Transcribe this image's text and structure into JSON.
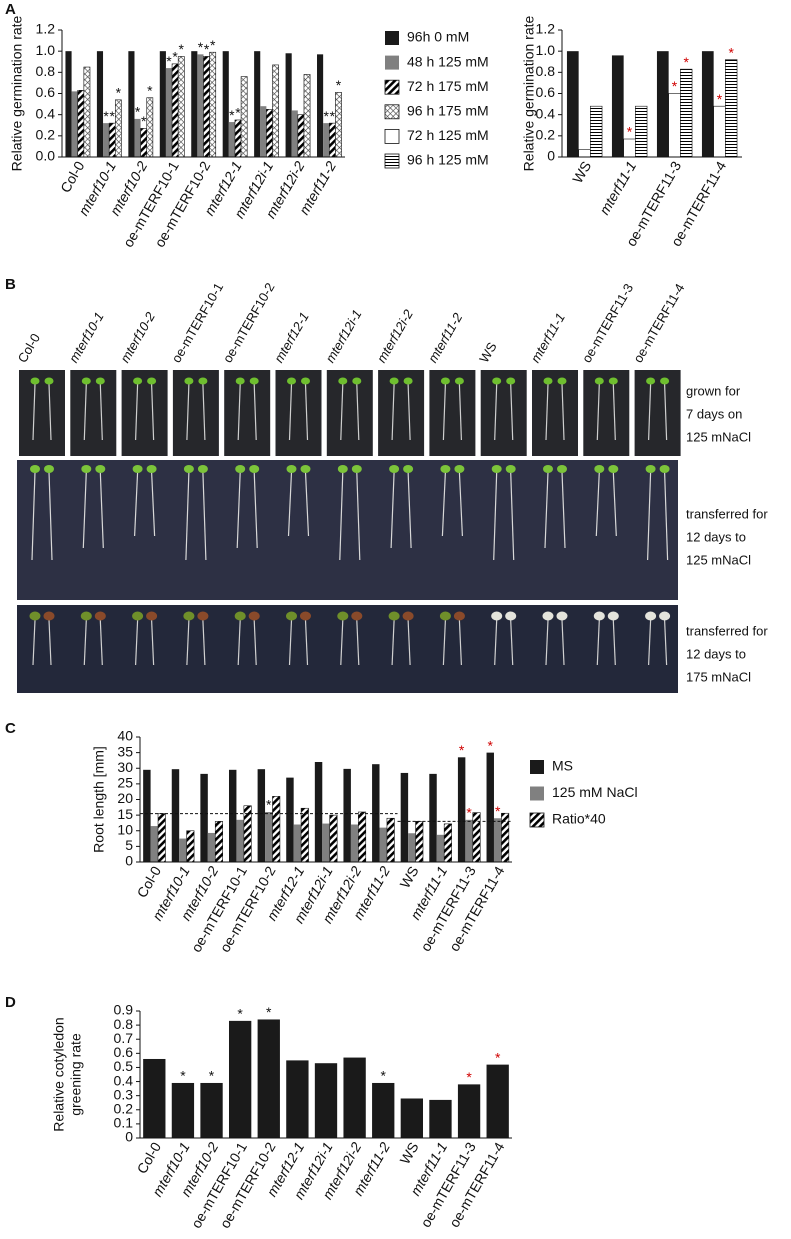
{
  "chart_data": [
    {
      "panel": "A",
      "type": "bar",
      "ylabel": "Relative germination rate",
      "categories": [
        "Col-0",
        "mterf10-1",
        "mterf10-2",
        "oe-mTERF10-1",
        "oe-mTERF10-2",
        "mterf12-1",
        "mterf12i-1",
        "mterf12i-2",
        "mterf11-2"
      ],
      "series": [
        {
          "name": "96h 0 mM",
          "color": "#1a1a1a",
          "pattern": "solid",
          "values": [
            1.0,
            1.0,
            1.0,
            1.0,
            1.0,
            1.0,
            1.0,
            0.98,
            0.97
          ]
        },
        {
          "name": "48 h 125 mM",
          "color": "#808080",
          "pattern": "solid",
          "values": [
            0.62,
            0.32,
            0.36,
            0.84,
            0.97,
            0.33,
            0.48,
            0.44,
            0.32
          ]
        },
        {
          "name": "72 h 175 mM",
          "color": "#000000",
          "pattern": "diagonal",
          "values": [
            0.63,
            0.32,
            0.27,
            0.88,
            0.95,
            0.35,
            0.45,
            0.4,
            0.32
          ]
        },
        {
          "name": "96 h 175 mM",
          "color": "#000000",
          "pattern": "crosshatch",
          "values": [
            0.85,
            0.54,
            0.56,
            0.95,
            0.99,
            0.76,
            0.87,
            0.78,
            0.61
          ]
        }
      ],
      "ylim": [
        0,
        1.2
      ],
      "yticks": [
        {
          "value": 0,
          "label": "0.0"
        },
        0.2,
        0.4,
        0.6,
        0.8,
        {
          "value": 1,
          "label": "1.0"
        },
        1.2
      ],
      "annotations": [
        {
          "text": "*",
          "series": 1,
          "index": 1
        },
        {
          "text": "*",
          "series": 2,
          "index": 1
        },
        {
          "text": "*",
          "series": 3,
          "index": 1
        },
        {
          "text": "*",
          "series": 1,
          "index": 2
        },
        {
          "text": "*",
          "series": 2,
          "index": 2
        },
        {
          "text": "*",
          "series": 3,
          "index": 2
        },
        {
          "text": "*",
          "series": 1,
          "index": 3
        },
        {
          "text": "*",
          "series": 2,
          "index": 3
        },
        {
          "text": "*",
          "series": 3,
          "index": 3
        },
        {
          "text": "*",
          "series": 1,
          "index": 4
        },
        {
          "text": "*",
          "series": 2,
          "index": 4
        },
        {
          "text": "*",
          "series": 3,
          "index": 4
        },
        {
          "text": "*",
          "series": 1,
          "index": 5
        },
        {
          "text": "*",
          "series": 2,
          "index": 5
        },
        {
          "text": "*",
          "series": 1,
          "index": 8
        },
        {
          "text": "*",
          "series": 2,
          "index": 8
        },
        {
          "text": "*",
          "series": 3,
          "index": 8
        }
      ]
    },
    {
      "type": "bar",
      "ylabel": "Relative germination rate",
      "categories": [
        "WS",
        "mterf11-1",
        "oe-mTERF11-3",
        "oe-mTERF11-4"
      ],
      "series": [
        {
          "color": "#1a1a1a",
          "pattern": "solid",
          "values": [
            1.0,
            0.96,
            1.0,
            1.0
          ]
        },
        {
          "name": "72 h 125 mM",
          "color": "#ffffff",
          "pattern": "white",
          "values": [
            0.07,
            0.17,
            0.6,
            0.48
          ]
        },
        {
          "name": "96 h 125 mM",
          "color": "#000000",
          "pattern": "horizontal",
          "values": [
            0.48,
            0.48,
            0.83,
            0.92
          ]
        }
      ],
      "ylim": [
        0,
        1.2
      ],
      "yticks": [
        0,
        0.2,
        0.4,
        0.6,
        0.8,
        {
          "value": 1,
          "label": "1.0"
        },
        1.2
      ],
      "annotations": [
        {
          "text": "*",
          "series": 1,
          "index": 1,
          "color": "#d00000"
        },
        {
          "text": "*",
          "series": 1,
          "index": 2,
          "color": "#d00000"
        },
        {
          "text": "*",
          "series": 2,
          "index": 2,
          "color": "#d00000"
        },
        {
          "text": "*",
          "series": 1,
          "index": 3,
          "color": "#d00000"
        },
        {
          "text": "*",
          "series": 2,
          "index": 3,
          "color": "#d00000"
        }
      ]
    },
    {
      "panel": "C",
      "type": "bar",
      "ylabel": "Root length [mm]",
      "categories": [
        "Col-0",
        "mterf10-1",
        "mterf10-2",
        "oe-mTERF10-1",
        "oe-mTERF10-2",
        "mterf12-1",
        "mterf12i-1",
        "mterf12i-2",
        "mterf11-2",
        "WS",
        "mterf11-1",
        "oe-mTERF11-3",
        "oe-mTERF11-4"
      ],
      "series": [
        {
          "name": "MS",
          "color": "#1a1a1a",
          "pattern": "solid",
          "values": [
            29.5,
            29.7,
            28.2,
            29.5,
            29.7,
            27,
            32,
            29.8,
            31.3,
            28.5,
            28.2,
            33.5,
            35
          ]
        },
        {
          "name": "125 mM NaCl",
          "color": "#808080",
          "pattern": "solid",
          "values": [
            11.5,
            7.5,
            9.3,
            13.5,
            16,
            12,
            12.3,
            12,
            11,
            9.2,
            8.7,
            13.5,
            14
          ]
        },
        {
          "name": "Ratio*40",
          "color": "#000000",
          "pattern": "diagonal",
          "values": [
            15.5,
            10,
            13,
            18,
            21,
            17.2,
            15,
            16,
            14,
            13,
            12.2,
            15.8,
            15.6
          ]
        }
      ],
      "ylim": [
        0,
        40
      ],
      "yticks": [
        0,
        5,
        10,
        15,
        20,
        25,
        30,
        35,
        40
      ],
      "reference_lines": [
        {
          "value": 15.5,
          "from": 0,
          "to": 8
        },
        {
          "value": 13,
          "from": 9,
          "to": 12
        }
      ],
      "annotations": [
        {
          "text": "*",
          "series": 1,
          "index": 4
        },
        {
          "text": "*",
          "series": 0,
          "index": 11,
          "color": "#d00000"
        },
        {
          "text": "*",
          "series": 1,
          "index": 11,
          "color": "#d00000"
        },
        {
          "text": "*",
          "series": 0,
          "index": 12,
          "color": "#d00000"
        },
        {
          "text": "*",
          "series": 1,
          "index": 12,
          "color": "#d00000"
        }
      ]
    },
    {
      "panel": "D",
      "type": "bar",
      "ylabel": [
        "Relative cotyledon",
        "greening rate"
      ],
      "categories": [
        "Col-0",
        "mterf10-1",
        "mterf10-2",
        "oe-mTERF10-1",
        "oe-mTERF10-2",
        "mterf12-1",
        "mterf12i-1",
        "mterf12i-2",
        "mterf11-2",
        "WS",
        "mterf11-1",
        "oe-mTERF11-3",
        "oe-mTERF11-4"
      ],
      "values": [
        0.56,
        0.39,
        0.39,
        0.83,
        0.84,
        0.55,
        0.53,
        0.57,
        0.39,
        0.28,
        0.27,
        0.38,
        0.52
      ],
      "color": "#1a1a1a",
      "ylim": [
        0,
        0.9
      ],
      "yticks": [
        0,
        0.1,
        0.2,
        0.3,
        0.4,
        0.5,
        0.6,
        0.7,
        0.8,
        0.9
      ],
      "annotations": [
        {
          "text": "*",
          "index": 1
        },
        {
          "text": "*",
          "index": 2
        },
        {
          "text": "*",
          "index": 3
        },
        {
          "text": "*",
          "index": 4
        },
        {
          "text": "*",
          "index": 8
        },
        {
          "text": "*",
          "index": 11,
          "color": "#d00000"
        },
        {
          "text": "*",
          "index": 12,
          "color": "#d00000"
        }
      ]
    }
  ],
  "photo_panel": {
    "panel": "B",
    "columns": [
      "Col-0",
      "mterf10-1",
      "mterf10-2",
      "oe-mTERF10-1",
      "oe-mTERF10-2",
      "mterf12-1",
      "mterf12i-1",
      "mterf12i-2",
      "mterf11-2",
      "WS",
      "mterf11-1",
      "oe-mTERF11-3",
      "oe-mTERF11-4"
    ],
    "rows": [
      [
        "grown for",
        "7 days on",
        "125 mNaCl"
      ],
      [
        "transferred for",
        "12 days to",
        "125 mNaCl"
      ],
      [
        "transferred for",
        "12 days to",
        "175 mNaCl"
      ]
    ]
  }
}
